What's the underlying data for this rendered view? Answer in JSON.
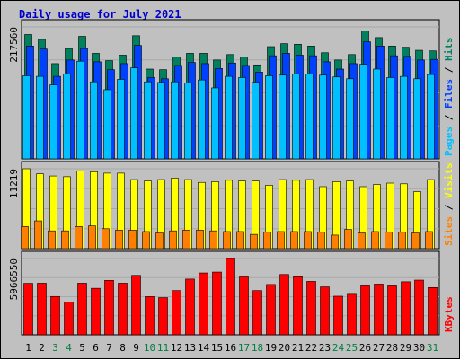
{
  "chart_data": {
    "title": "Daily usage for July 2021",
    "type": "bar",
    "days": [
      "1",
      "2",
      "3",
      "4",
      "5",
      "6",
      "7",
      "8",
      "9",
      "10",
      "11",
      "12",
      "13",
      "14",
      "15",
      "16",
      "17",
      "18",
      "19",
      "20",
      "21",
      "22",
      "23",
      "24",
      "25",
      "26",
      "27",
      "28",
      "29",
      "30",
      "31"
    ],
    "weekend_days": [
      "3",
      "4",
      "10",
      "11",
      "17",
      "18",
      "24",
      "25",
      "31"
    ],
    "colors": {
      "hits": "#00805c",
      "files": "#0040ff",
      "pages": "#00c0ff",
      "visits": "#ffff00",
      "sites": "#ff8000",
      "kbytes": "#ff0000",
      "weekday_label": "#000000",
      "weekend_label": "#008040",
      "background": "#c0c0c0"
    },
    "panels": [
      {
        "name": "hits_files_pages",
        "ymax_label": "217560",
        "ymax": 217560,
        "right_labels": [
          {
            "text": "Pages",
            "color": "#00c0ff"
          },
          {
            "text": " / ",
            "color": "#000000"
          },
          {
            "text": "Files",
            "color": "#0040ff"
          },
          {
            "text": " / ",
            "color": "#000000"
          },
          {
            "text": "Hits",
            "color": "#00805c"
          }
        ],
        "series": [
          {
            "name": "Hits",
            "values": [
              205000,
              197000,
              157000,
              182000,
              202000,
              174000,
              162000,
              171000,
              203000,
              148000,
              147000,
              168000,
              174000,
              174000,
              163000,
              172000,
              168000,
              155000,
              185000,
              190000,
              189000,
              186000,
              175000,
              163000,
              172000,
              211000,
              200000,
              186000,
              184000,
              179000,
              178000
            ]
          },
          {
            "name": "Files",
            "values": [
              186000,
              181000,
              136000,
              163000,
              182000,
              160000,
              147000,
              157000,
              187000,
              134000,
              132000,
              154000,
              159000,
              157000,
              149000,
              158000,
              154000,
              143000,
              170000,
              174000,
              171000,
              170000,
              160000,
              148000,
              157000,
              193000,
              186000,
              170000,
              169000,
              163000,
              164000
            ]
          },
          {
            "name": "Pages",
            "values": [
              137000,
              136000,
              122000,
              140000,
              161000,
              127000,
              114000,
              131000,
              150000,
              127000,
              126000,
              127000,
              125000,
              130000,
              117000,
              136000,
              134000,
              126000,
              137000,
              138000,
              140000,
              140000,
              138000,
              135000,
              132000,
              156000,
              148000,
              134000,
              136000,
              132000,
              139000
            ]
          }
        ]
      },
      {
        "name": "visits_sites",
        "ymax_label": "11219",
        "ymax": 11219,
        "right_labels": [
          {
            "text": "Sites",
            "color": "#ff8000"
          },
          {
            "text": " / ",
            "color": "#000000"
          },
          {
            "text": "Visits",
            "color": "#ffff00"
          }
        ],
        "series": [
          {
            "name": "Visits",
            "values": [
              11219,
              10500,
              10200,
              10100,
              10900,
              10800,
              10600,
              10600,
              9700,
              9500,
              9700,
              9900,
              9700,
              9300,
              9400,
              9600,
              9500,
              9500,
              8900,
              9700,
              9600,
              9700,
              8700,
              9400,
              9500,
              8700,
              9000,
              9200,
              9100,
              8000,
              9700
            ]
          },
          {
            "name": "Sites",
            "values": [
              3100,
              3900,
              2500,
              2500,
              3100,
              3200,
              2800,
              2600,
              2600,
              2400,
              2200,
              2500,
              2600,
              2600,
              2500,
              2400,
              2400,
              2000,
              2300,
              2400,
              2400,
              2400,
              2300,
              1900,
              2700,
              2200,
              2400,
              2300,
              2300,
              2200,
              2400
            ]
          }
        ]
      },
      {
        "name": "kbytes",
        "ymax_label": "5966550",
        "ymax": 5966550,
        "right_labels": [
          {
            "text": "KBytes",
            "color": "#ff0000"
          }
        ],
        "series": [
          {
            "name": "KBytes",
            "values": [
              4030000,
              4040000,
              3000000,
              2560000,
              4040000,
              3640000,
              4260000,
              4040000,
              4650000,
              2990000,
              2910000,
              3460000,
              4360000,
              4840000,
              4910000,
              5966550,
              4530000,
              3460000,
              3940000,
              4720000,
              4540000,
              4180000,
              3750000,
              3020000,
              3170000,
              3830000,
              3970000,
              3830000,
              4150000,
              4280000,
              3700000
            ]
          }
        ]
      }
    ]
  }
}
